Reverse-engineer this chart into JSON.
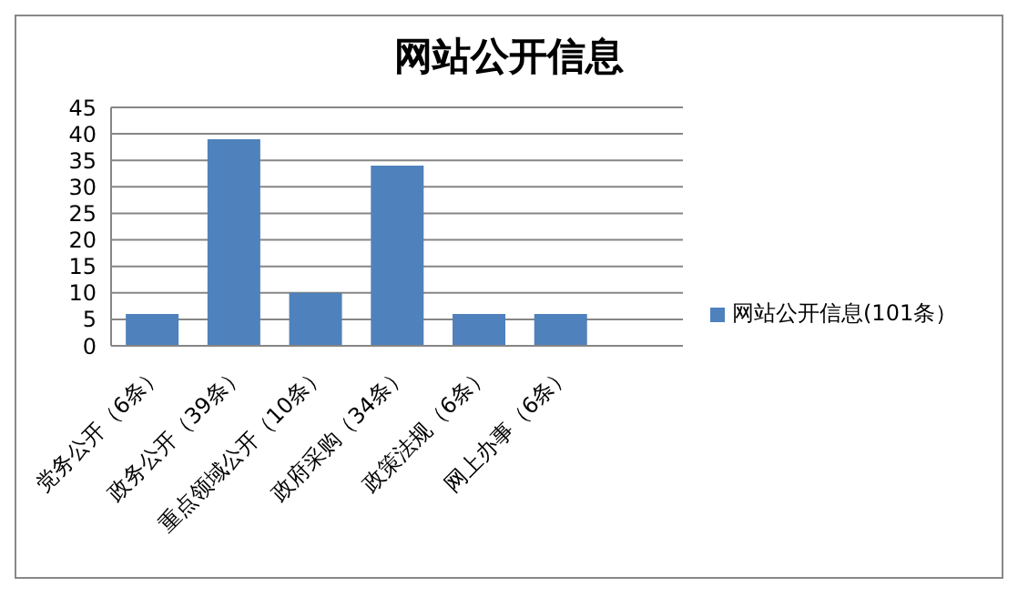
{
  "chart_data": {
    "type": "bar",
    "title": "网站公开信息",
    "categories": [
      "党务公开（6条）",
      "政务公开（39条）",
      "重点领域公开（10条）",
      "政府采购（34条）",
      "政策法规（6条）",
      "网上办事（6条）",
      null
    ],
    "series": [
      {
        "name": "网站公开信息(101条）",
        "color": "#4f81bd",
        "values": [
          6,
          39,
          10,
          34,
          6,
          6,
          null
        ]
      }
    ],
    "ylim": [
      0,
      45
    ],
    "yticks": [
      0,
      5,
      10,
      15,
      20,
      25,
      30,
      35,
      40,
      45
    ],
    "grid": "y",
    "legend": "right"
  }
}
